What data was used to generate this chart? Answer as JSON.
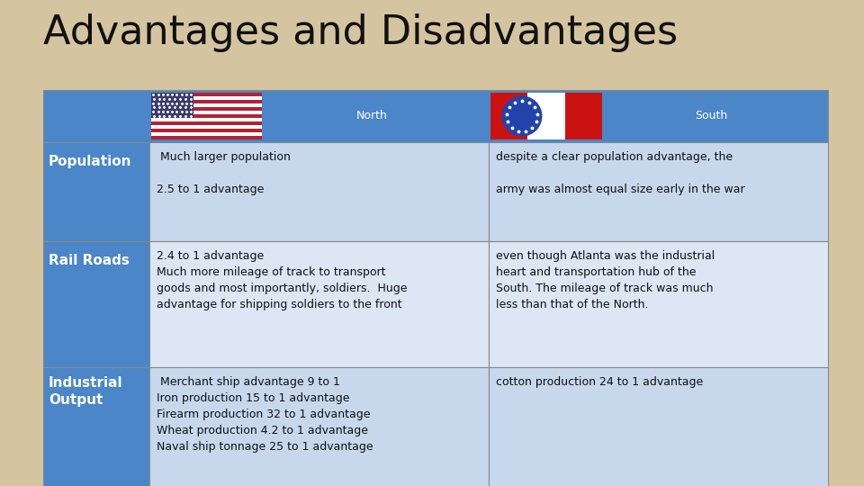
{
  "title": "Advantages and Disadvantages",
  "background_color": "#d4c5a0",
  "header_bg": "#4a86c8",
  "header_text_color": "#ffffff",
  "row_label_bg": "#4a86c8",
  "row_label_text_color": "#ffffff",
  "north_cell_bg": "#c8d8ec",
  "south_cell_bg": "#dce6f4",
  "row_labels": [
    "Population",
    "Rail Roads",
    "Industrial\nOutput"
  ],
  "north_col_header": "North",
  "south_col_header": "South",
  "north_texts": [
    " Much larger population\n\n2.5 to 1 advantage",
    "2.4 to 1 advantage\nMuch more mileage of track to transport\ngoods and most importantly, soldiers.  Huge\nadvantage for shipping soldiers to the front",
    " Merchant ship advantage 9 to 1\nIron production 15 to 1 advantage\nFirearm production 32 to 1 advantage\nWheat production 4.2 to 1 advantage\nNaval ship tonnage 25 to 1 advantage"
  ],
  "south_texts": [
    "despite a clear population advantage, the\n\narmy was almost equal size early in the war",
    "even though Atlanta was the industrial\nheart and transportation hub of the\nSouth. The mileage of track was much\nless than that of the North.",
    "cotton production 24 to 1 advantage"
  ],
  "title_fontsize": 32,
  "header_fontsize": 9,
  "row_label_fontsize": 11,
  "cell_fontsize": 9
}
